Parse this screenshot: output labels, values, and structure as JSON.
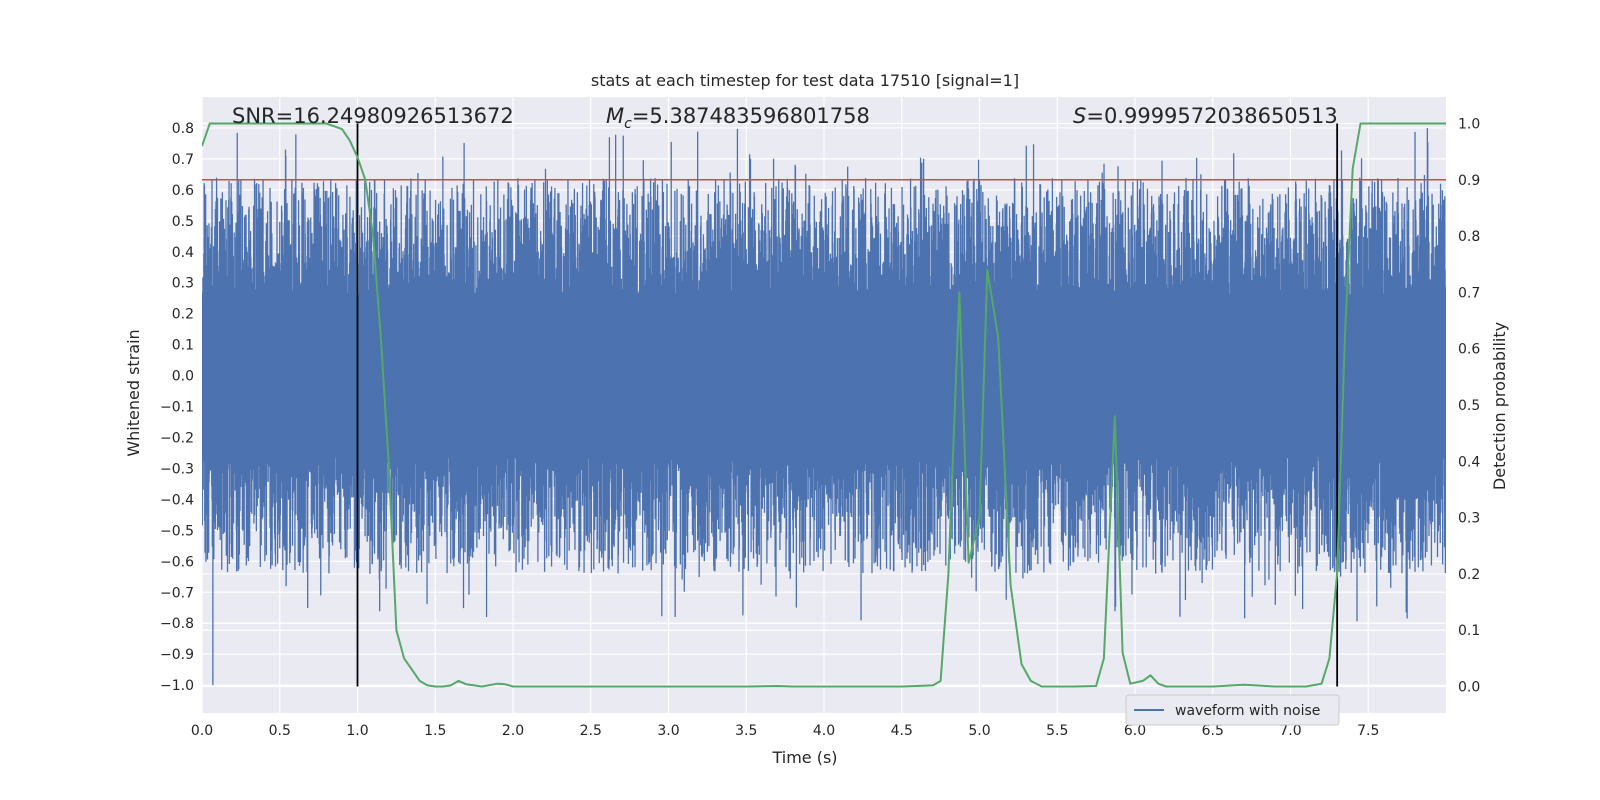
{
  "chart_data": {
    "type": "line",
    "title": "stats at each timestep for test data 17510 [signal=1]",
    "xlabel": "Time (s)",
    "ylabel": "Whitened strain",
    "y2label": "Detection probability",
    "xlim": [
      0.0,
      8.0
    ],
    "ylim": [
      -1.09,
      0.9
    ],
    "y2lim": [
      -0.047,
      1.047
    ],
    "x_ticks": [
      0.0,
      0.5,
      1.0,
      1.5,
      2.0,
      2.5,
      3.0,
      3.5,
      4.0,
      4.5,
      5.0,
      5.5,
      6.0,
      6.5,
      7.0,
      7.5
    ],
    "y_ticks": [
      -1.0,
      -0.9,
      -0.8,
      -0.7,
      -0.6,
      -0.5,
      -0.4,
      -0.3,
      -0.2,
      -0.1,
      0.0,
      0.1,
      0.2,
      0.3,
      0.4,
      0.5,
      0.6,
      0.7,
      0.8
    ],
    "y2_ticks": [
      0.0,
      0.1,
      0.2,
      0.3,
      0.4,
      0.5,
      0.6,
      0.7,
      0.8,
      0.9,
      1.0
    ],
    "grid": true,
    "legend_position": "lower-right",
    "annotations": {
      "snr": "SNR=16.24980926513672",
      "mc_symbol": "M",
      "mc_sub": "c",
      "mc_value": "=5.387483596801758",
      "s_symbol": "S",
      "s_value": "=0.9999572038650513"
    },
    "threshold_line": {
      "axis": "right",
      "value": 0.9,
      "color": "#c44e52"
    },
    "vertical_lines": [
      1.0,
      7.3
    ],
    "series": [
      {
        "name": "waveform with noise",
        "axis": "left",
        "color": "#4c72b0",
        "kind": "noise",
        "sample_rate": 512,
        "core_amplitude": 0.26,
        "peak_amplitude_max": 0.8,
        "min_value": -1.0,
        "max_value": 0.8
      },
      {
        "name": "",
        "axis": "right",
        "color": "#55a868",
        "x": [
          0.0,
          0.05,
          0.1,
          0.2,
          0.3,
          0.4,
          0.5,
          0.6,
          0.7,
          0.8,
          0.9,
          0.95,
          1.0,
          1.05,
          1.1,
          1.15,
          1.2,
          1.25,
          1.3,
          1.35,
          1.4,
          1.45,
          1.5,
          1.55,
          1.6,
          1.65,
          1.7,
          1.8,
          1.9,
          1.95,
          2.0,
          2.1,
          2.3,
          2.5,
          3.0,
          3.5,
          3.7,
          3.8,
          4.0,
          4.5,
          4.7,
          4.75,
          4.8,
          4.87,
          4.93,
          5.0,
          5.05,
          5.12,
          5.2,
          5.27,
          5.33,
          5.4,
          5.5,
          5.6,
          5.75,
          5.8,
          5.87,
          5.92,
          5.97,
          6.05,
          6.1,
          6.15,
          6.2,
          6.3,
          6.5,
          6.7,
          6.9,
          7.1,
          7.2,
          7.25,
          7.3,
          7.35,
          7.4,
          7.45,
          7.5,
          7.6,
          7.7,
          7.8,
          7.9,
          8.0
        ],
        "values": [
          0.96,
          1.0,
          1.0,
          1.0,
          1.0,
          1.0,
          1.0,
          1.0,
          1.0,
          1.0,
          0.99,
          0.97,
          0.94,
          0.9,
          0.8,
          0.62,
          0.4,
          0.1,
          0.05,
          0.03,
          0.01,
          0.002,
          0.0,
          0.0,
          0.002,
          0.01,
          0.004,
          0.0,
          0.005,
          0.004,
          0.0,
          0.0,
          0.0,
          0.0,
          0.0,
          0.0,
          0.001,
          0.0,
          0.0,
          0.0,
          0.002,
          0.01,
          0.2,
          0.7,
          0.22,
          0.3,
          0.74,
          0.62,
          0.18,
          0.04,
          0.01,
          0.0,
          0.0,
          0.0,
          0.001,
          0.05,
          0.48,
          0.06,
          0.005,
          0.01,
          0.02,
          0.005,
          0.0,
          0.0,
          0.0,
          0.003,
          0.0,
          0.0,
          0.005,
          0.05,
          0.2,
          0.62,
          0.92,
          1.0,
          1.0,
          1.0,
          1.0,
          1.0,
          1.0,
          1.0
        ]
      }
    ]
  }
}
